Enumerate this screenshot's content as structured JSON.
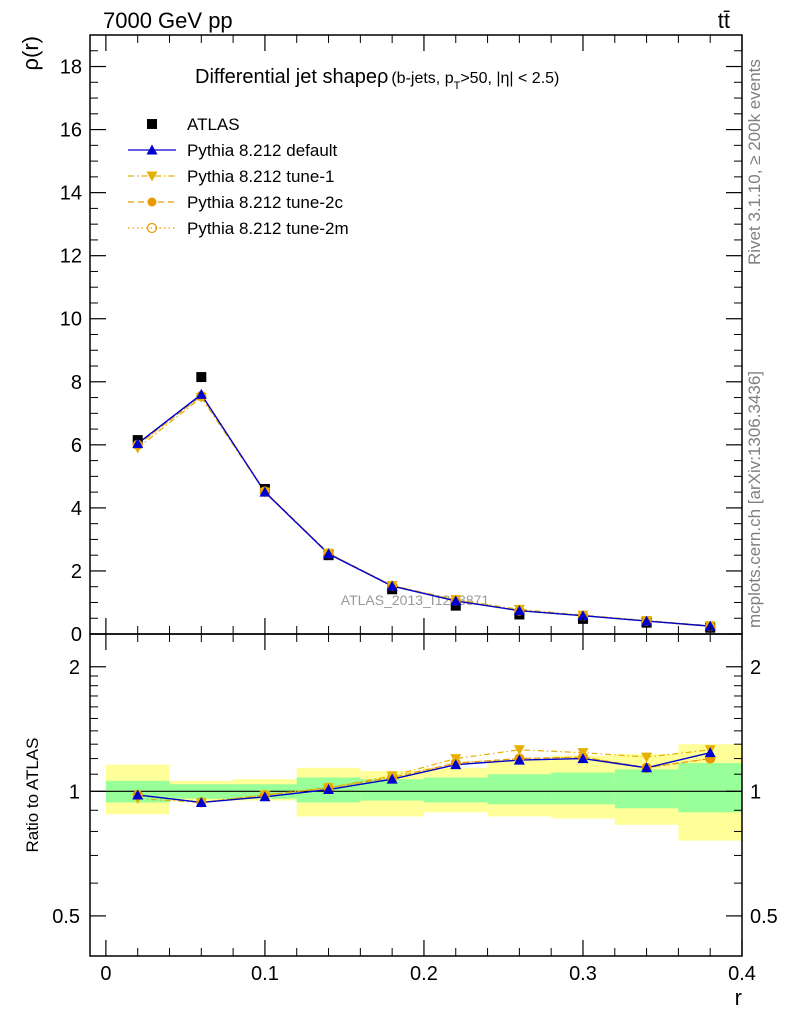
{
  "header": {
    "energy_label": "7000 GeV pp",
    "process_label": "tt̄"
  },
  "side": {
    "rivet_label": "Rivet 3.1.10, ≥ 200k events",
    "mcplots_label": "mcplots.cern.ch [arXiv:1306.3436]"
  },
  "chart_data": [
    {
      "type": "line",
      "title": "Differential jet shapeρ",
      "title_qualifier": "(b-jets, p",
      "title_qualifier_sub": "T",
      "title_qualifier_rest": ">50, |η| < 2.5)",
      "watermark": "ATLAS_2013_I1243871",
      "ylabel": "ρ(r)",
      "ylim": [
        0,
        19
      ],
      "yticks": [
        0,
        2,
        4,
        6,
        8,
        10,
        12,
        14,
        16,
        18
      ],
      "yticklabels": [
        "0",
        "2",
        "4",
        "6",
        "8",
        "10",
        "12",
        "14",
        "16",
        "18"
      ],
      "xlim": [
        -0.01,
        0.4
      ],
      "grid": false,
      "legend_position": "top-left",
      "x": [
        0.02,
        0.06,
        0.1,
        0.14,
        0.18,
        0.22,
        0.26,
        0.3,
        0.34,
        0.38
      ],
      "series": [
        {
          "name": "ATLAS",
          "color": "#000000",
          "marker": "square",
          "values": [
            6.15,
            8.15,
            4.6,
            2.5,
            1.42,
            0.9,
            0.62,
            0.48,
            0.36,
            0.2
          ]
        },
        {
          "name": "Pythia 8.212 default",
          "color": "#0000cc",
          "marker": "triangle-up",
          "line": "solid",
          "values": [
            6.04,
            7.6,
            4.5,
            2.54,
            1.52,
            1.05,
            0.74,
            0.58,
            0.41,
            0.25
          ]
        },
        {
          "name": "Pythia 8.212 tune-1",
          "color": "#e6b000",
          "marker": "triangle-down",
          "line": "dashdot",
          "values": [
            5.9,
            7.5,
            4.5,
            2.56,
            1.54,
            1.09,
            0.78,
            0.6,
            0.43,
            0.26
          ]
        },
        {
          "name": "Pythia 8.212 tune-2c",
          "color": "#e69a00",
          "marker": "circle",
          "line": "dashed",
          "values": [
            6.0,
            7.55,
            4.52,
            2.56,
            1.53,
            1.06,
            0.74,
            0.58,
            0.41,
            0.24
          ]
        },
        {
          "name": "Pythia 8.212 tune-2m",
          "color": "#e69a00",
          "marker": "circle-open",
          "line": "dotted",
          "values": [
            6.0,
            7.55,
            4.52,
            2.56,
            1.53,
            1.06,
            0.74,
            0.58,
            0.41,
            0.24
          ]
        }
      ]
    },
    {
      "type": "line",
      "xlabel": "r",
      "ylabel": "Ratio to ATLAS",
      "ylim": [
        0.4,
        2.4
      ],
      "yscale": "log",
      "yticks": [
        0.5,
        1,
        2
      ],
      "yticklabels": [
        "0.5",
        "1",
        "2"
      ],
      "xlim": [
        -0.01,
        0.4
      ],
      "xticks": [
        0,
        0.1,
        0.2,
        0.3,
        0.4
      ],
      "xticklabels": [
        "0",
        "0.1",
        "0.2",
        "0.3",
        "0.4"
      ],
      "reference_line": 1,
      "bins": [
        [
          0,
          0.04
        ],
        [
          0.04,
          0.08
        ],
        [
          0.08,
          0.12
        ],
        [
          0.12,
          0.16
        ],
        [
          0.16,
          0.2
        ],
        [
          0.2,
          0.24
        ],
        [
          0.24,
          0.28
        ],
        [
          0.28,
          0.32
        ],
        [
          0.32,
          0.36
        ],
        [
          0.36,
          0.4
        ]
      ],
      "uncertainty_bands": [
        {
          "name": "stat",
          "color": "#99ff99",
          "low": [
            0.94,
            0.96,
            0.96,
            0.94,
            0.95,
            0.94,
            0.93,
            0.93,
            0.91,
            0.89
          ],
          "high": [
            1.06,
            1.04,
            1.04,
            1.08,
            1.07,
            1.08,
            1.1,
            1.11,
            1.13,
            1.17
          ]
        },
        {
          "name": "total",
          "color": "#ffff99",
          "low": [
            0.88,
            0.95,
            0.95,
            0.87,
            0.87,
            0.89,
            0.87,
            0.86,
            0.83,
            0.76
          ],
          "high": [
            1.16,
            1.06,
            1.07,
            1.14,
            1.12,
            1.14,
            1.19,
            1.22,
            1.23,
            1.3
          ]
        }
      ],
      "series": [
        {
          "name": "Pythia 8.212 default",
          "color": "#0000cc",
          "marker": "triangle-up",
          "line": "solid",
          "values": [
            0.98,
            0.94,
            0.97,
            1.01,
            1.07,
            1.16,
            1.19,
            1.2,
            1.14,
            1.24
          ]
        },
        {
          "name": "Pythia 8.212 tune-1",
          "color": "#e6b000",
          "marker": "triangle-down",
          "line": "dashdot",
          "values": [
            0.96,
            0.94,
            0.98,
            1.02,
            1.09,
            1.2,
            1.26,
            1.24,
            1.21,
            1.26
          ]
        },
        {
          "name": "Pythia 8.212 tune-2c",
          "color": "#e69a00",
          "marker": "circle",
          "line": "dashed",
          "values": [
            0.98,
            0.94,
            0.98,
            1.02,
            1.08,
            1.17,
            1.2,
            1.21,
            1.14,
            1.2
          ]
        },
        {
          "name": "Pythia 8.212 tune-2m",
          "color": "#e69a00",
          "marker": "circle-open",
          "line": "dotted",
          "values": [
            0.98,
            0.94,
            0.98,
            1.02,
            1.08,
            1.17,
            1.2,
            1.21,
            1.14,
            1.2
          ]
        }
      ]
    }
  ]
}
